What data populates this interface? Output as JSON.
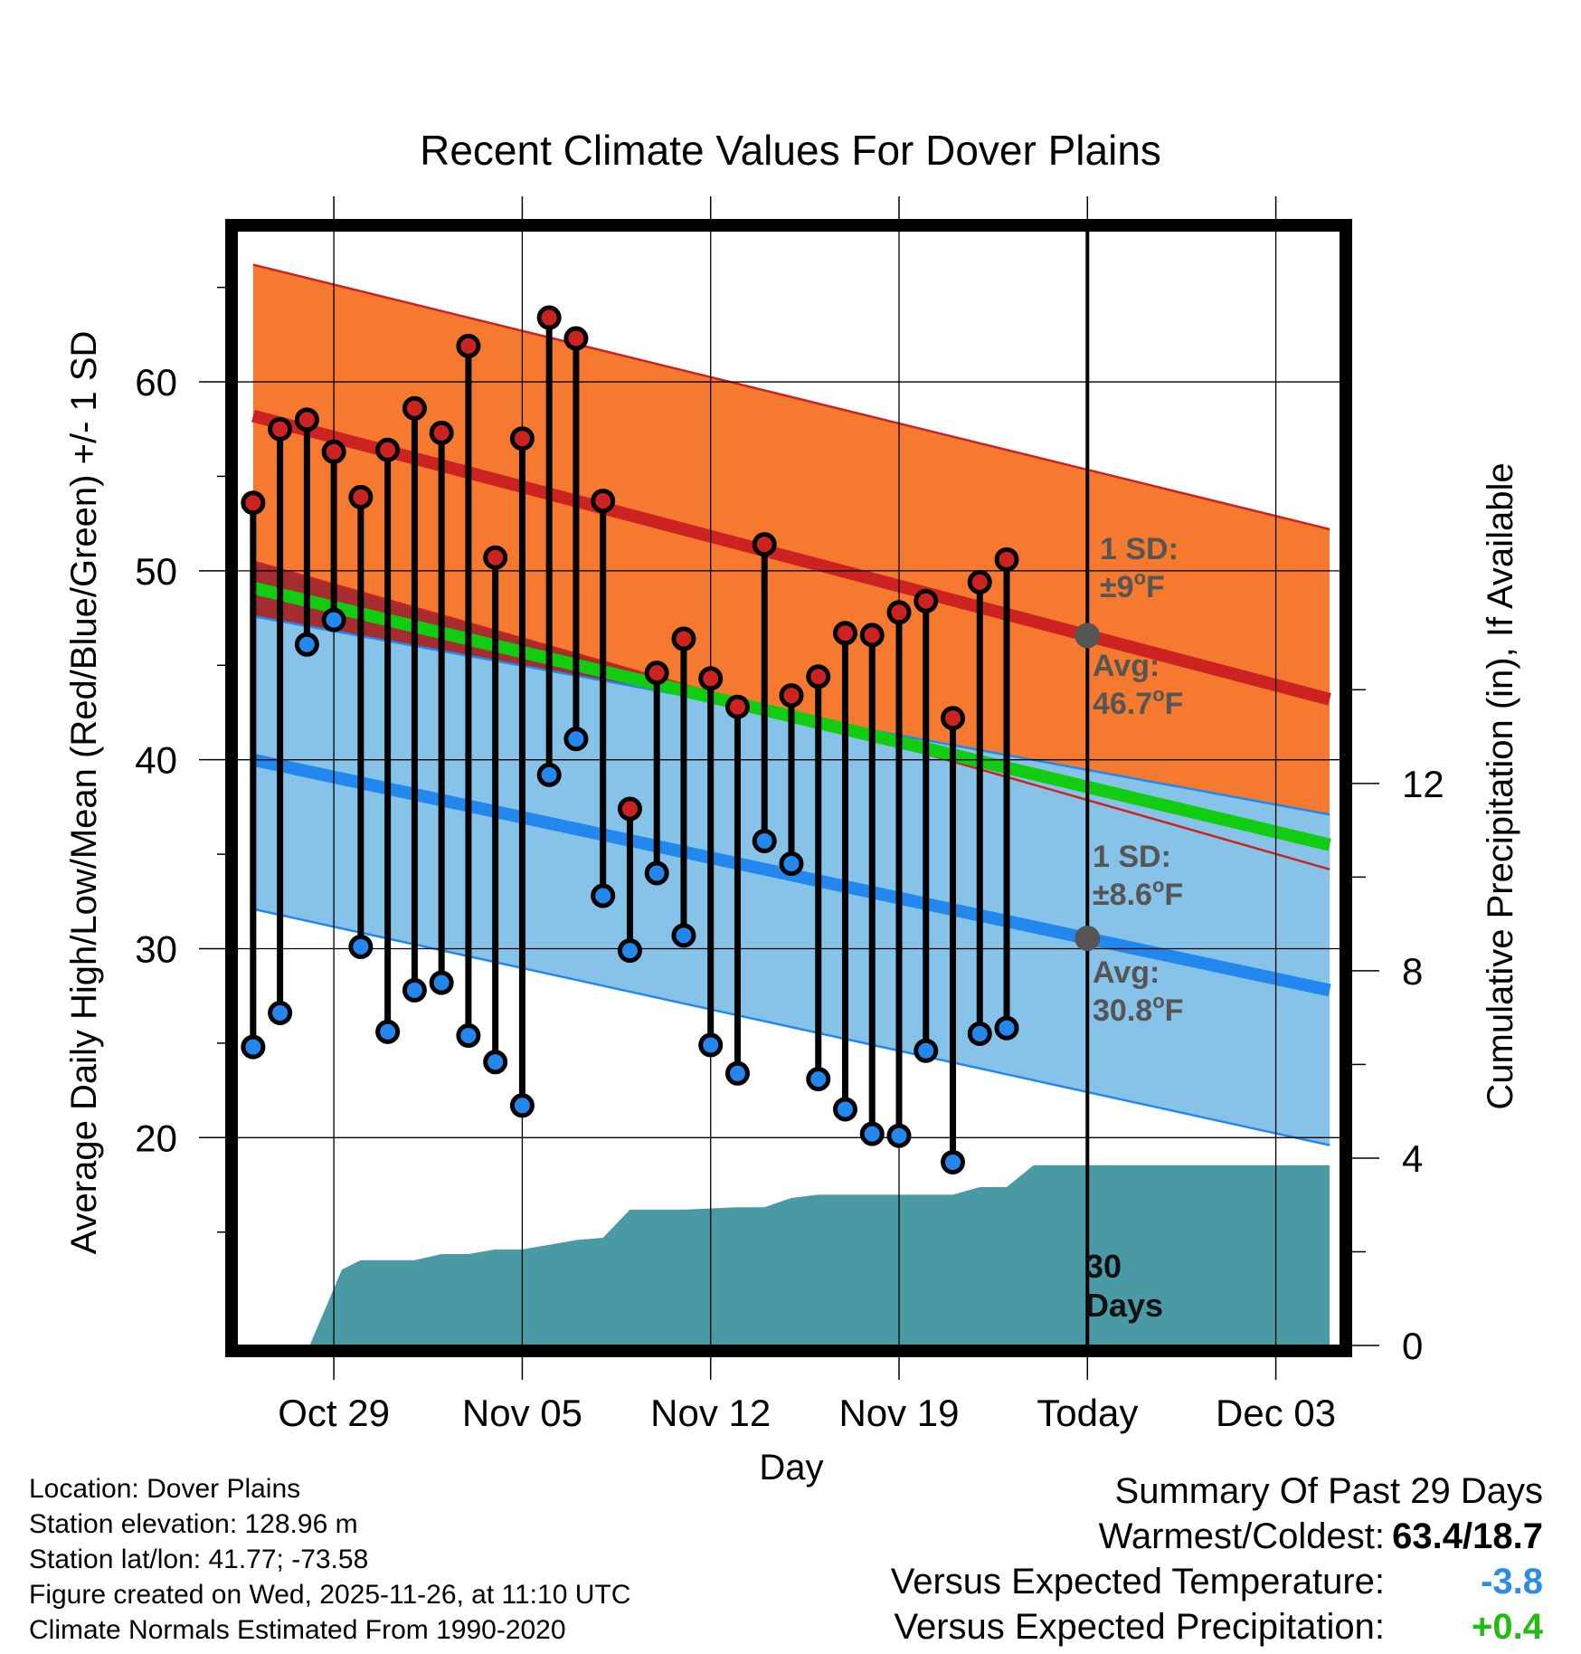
{
  "chart_data": {
    "type": "line",
    "title": "Recent Climate Values For Dover Plains",
    "xlabel": "Day",
    "ylabel_left": "Average Daily High/Low/Mean (Red/Blue/Green) +/- 1 SD",
    "ylabel_right": "Cumulative Precipitation (in), If Available",
    "x_ticks": [
      {
        "day": 3,
        "label": "Oct 29"
      },
      {
        "day": 10,
        "label": "Nov 05"
      },
      {
        "day": 17,
        "label": "Nov 12"
      },
      {
        "day": 24,
        "label": "Nov 19"
      },
      {
        "day": 31,
        "label": "Today"
      },
      {
        "day": 38,
        "label": "Dec 03"
      }
    ],
    "xlim": [
      -0.6,
      40.4
    ],
    "ylim_left": [
      9,
      68
    ],
    "y_ticks_left": [
      20,
      30,
      40,
      50,
      60
    ],
    "ylim_right": [
      0,
      23.8
    ],
    "y_ticks_right": [
      0,
      4,
      8,
      12
    ],
    "today_day": 31,
    "normals": {
      "x_range": [
        0,
        40
      ],
      "high_mean": [
        58.2,
        43.2
      ],
      "high_upper": [
        66.2,
        52.2
      ],
      "high_lower": [
        50.5,
        34.2
      ],
      "low_mean": [
        40.0,
        27.8
      ],
      "low_upper": [
        47.6,
        37.1
      ],
      "low_lower": [
        32.1,
        19.6
      ],
      "avg_mean": [
        49.1,
        35.5
      ]
    },
    "series": [
      {
        "name": "Daily High",
        "color": "#cc2222",
        "values": [
          53.6,
          57.5,
          58.0,
          56.3,
          53.9,
          56.4,
          58.6,
          57.3,
          61.9,
          50.7,
          57.0,
          63.4,
          62.3,
          53.7,
          37.4,
          44.6,
          46.4,
          44.3,
          42.8,
          51.4,
          43.4,
          44.4,
          46.7,
          46.6,
          47.8,
          48.4,
          42.2,
          49.4,
          50.6
        ]
      },
      {
        "name": "Daily Low",
        "color": "#2288ee",
        "values": [
          24.8,
          26.6,
          46.1,
          47.4,
          30.1,
          25.6,
          27.8,
          28.2,
          25.4,
          24.0,
          21.7,
          39.2,
          41.1,
          32.8,
          29.9,
          34.0,
          30.7,
          24.9,
          23.4,
          35.7,
          34.5,
          23.1,
          21.5,
          20.2,
          20.1,
          24.6,
          18.7,
          25.5,
          25.8
        ]
      },
      {
        "name": "Cumulative Precipitation",
        "color": "#4a9aa5",
        "x": [
          0,
          2.1,
          3.3,
          4.0,
          6.0,
          7.0,
          8.0,
          9.0,
          10.0,
          11.0,
          12.0,
          13.0,
          14.0,
          15.0,
          16.0,
          18.0,
          19.0,
          20.0,
          21.0,
          22.0,
          23.0,
          24.0,
          25.0,
          26.0,
          27.0,
          28.0,
          29.0,
          30.0,
          31.0,
          40.0
        ],
        "values": [
          0,
          0,
          1.62,
          1.82,
          1.82,
          1.95,
          1.95,
          2.05,
          2.05,
          2.15,
          2.25,
          2.3,
          2.9,
          2.9,
          2.9,
          2.95,
          2.95,
          3.15,
          3.22,
          3.22,
          3.22,
          3.22,
          3.22,
          3.22,
          3.38,
          3.38,
          3.85,
          3.85,
          3.85,
          3.85
        ]
      }
    ],
    "annotations": {
      "high_sd_title": "1 SD:",
      "high_sd_value": "±9",
      "high_avg_label": "Avg:",
      "high_avg_value": "46.7",
      "low_sd_title": "1 SD:",
      "low_sd_value": "±8.6",
      "low_avg_label": "Avg:",
      "low_avg_value": "30.8",
      "unit_sup": "o",
      "unit_letter": "F",
      "days_count": "30",
      "days_word": "Days"
    }
  },
  "station": {
    "location": "Location: Dover Plains",
    "elevation": "Station elevation: 128.96 m",
    "latlon": "Station lat/lon: 41.77; -73.58",
    "created": "Figure created on Wed, 2025-11-26, at 11:10 UTC",
    "normals_source": "Climate Normals Estimated From 1990-2020"
  },
  "summary": {
    "title": "Summary Of Past 29 Days",
    "warmest_label": "Warmest/Coldest:",
    "warmest_value": "63.4/18.7",
    "temp_label": "Versus Expected Temperature:",
    "temp_value": "-3.8",
    "precip_label": "Versus Expected Precipitation:",
    "precip_value": "+0.4",
    "temp_color": "#2b8ce8",
    "precip_color": "#22bb11"
  }
}
